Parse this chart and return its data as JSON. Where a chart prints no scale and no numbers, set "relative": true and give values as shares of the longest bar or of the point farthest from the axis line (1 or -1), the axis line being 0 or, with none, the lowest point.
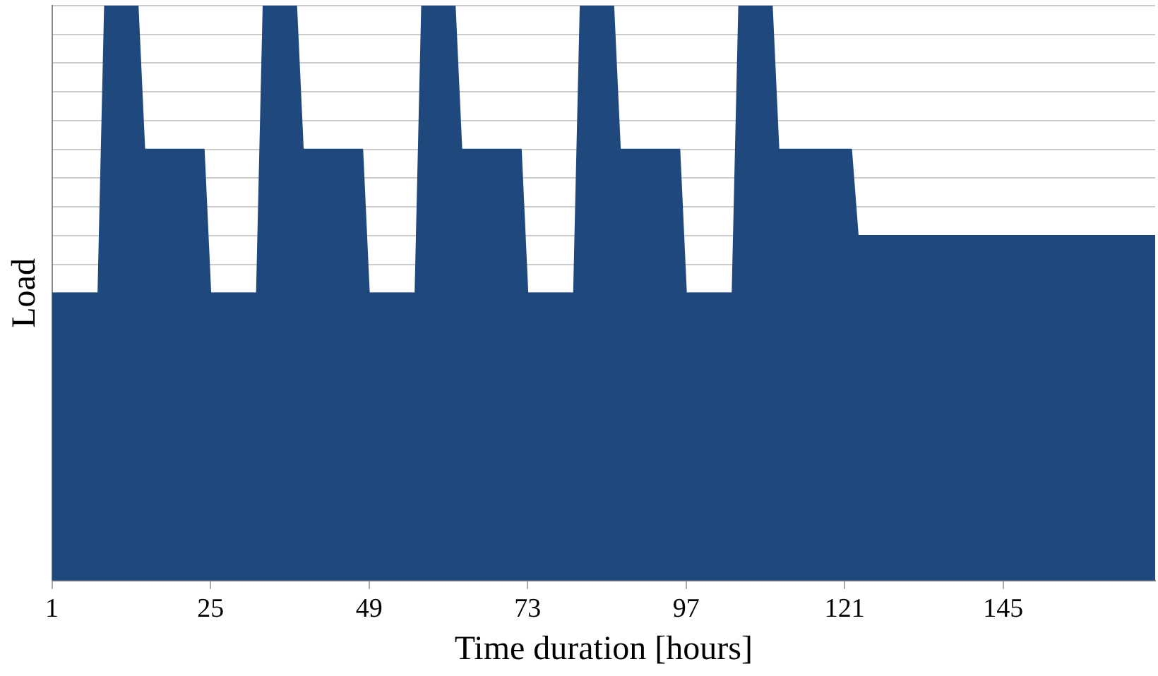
{
  "chart_data": {
    "type": "area",
    "xlabel": "Time duration [hours]",
    "ylabel": "Load",
    "relative": true,
    "grid": "y",
    "legend": false,
    "x": [
      1,
      2,
      3,
      4,
      5,
      6,
      7,
      8,
      9,
      10,
      11,
      12,
      13,
      14,
      15,
      16,
      17,
      18,
      19,
      20,
      21,
      22,
      23,
      24,
      25,
      26,
      27,
      28,
      29,
      30,
      31,
      32,
      33,
      34,
      35,
      36,
      37,
      38,
      39,
      40,
      41,
      42,
      43,
      44,
      45,
      46,
      47,
      48,
      49,
      50,
      51,
      52,
      53,
      54,
      55,
      56,
      57,
      58,
      59,
      60,
      61,
      62,
      63,
      64,
      65,
      66,
      67,
      68,
      69,
      70,
      71,
      72,
      73,
      74,
      75,
      76,
      77,
      78,
      79,
      80,
      81,
      82,
      83,
      84,
      85,
      86,
      87,
      88,
      89,
      90,
      91,
      92,
      93,
      94,
      95,
      96,
      97,
      98,
      99,
      100,
      101,
      102,
      103,
      104,
      105,
      106,
      107,
      108,
      109,
      110,
      111,
      112,
      113,
      114,
      115,
      116,
      117,
      118,
      119,
      120,
      121,
      122,
      123,
      124,
      125,
      126,
      127,
      128,
      129,
      130,
      131,
      132,
      133,
      134,
      135,
      136,
      137,
      138,
      139,
      140,
      141,
      142,
      143,
      144,
      145,
      146,
      147,
      148,
      149,
      150,
      151,
      152,
      153,
      154,
      155,
      156,
      157,
      158,
      159,
      160,
      161,
      162,
      163,
      164,
      165,
      166,
      167,
      168
    ],
    "xlim": [
      1,
      168
    ],
    "xticks": [
      1,
      25,
      49,
      73,
      97,
      121,
      145
    ],
    "series": [
      {
        "color": "#1f497d",
        "values": [
          0.5,
          0.5,
          0.5,
          0.5,
          0.5,
          0.5,
          0.5,
          0.5,
          1,
          1,
          1,
          1,
          1,
          1,
          0.75,
          0.75,
          0.75,
          0.75,
          0.75,
          0.75,
          0.75,
          0.75,
          0.75,
          0.75,
          0.5,
          0.5,
          0.5,
          0.5,
          0.5,
          0.5,
          0.5,
          0.5,
          1,
          1,
          1,
          1,
          1,
          1,
          0.75,
          0.75,
          0.75,
          0.75,
          0.75,
          0.75,
          0.75,
          0.75,
          0.75,
          0.75,
          0.5,
          0.5,
          0.5,
          0.5,
          0.5,
          0.5,
          0.5,
          0.5,
          1,
          1,
          1,
          1,
          1,
          1,
          0.75,
          0.75,
          0.75,
          0.75,
          0.75,
          0.75,
          0.75,
          0.75,
          0.75,
          0.75,
          0.5,
          0.5,
          0.5,
          0.5,
          0.5,
          0.5,
          0.5,
          0.5,
          1,
          1,
          1,
          1,
          1,
          1,
          0.75,
          0.75,
          0.75,
          0.75,
          0.75,
          0.75,
          0.75,
          0.75,
          0.75,
          0.75,
          0.5,
          0.5,
          0.5,
          0.5,
          0.5,
          0.5,
          0.5,
          0.5,
          1,
          1,
          1,
          1,
          1,
          1,
          0.75,
          0.75,
          0.75,
          0.75,
          0.75,
          0.75,
          0.75,
          0.75,
          0.75,
          0.75,
          0.75,
          0.75,
          0.6,
          0.6,
          0.6,
          0.6,
          0.6,
          0.6,
          0.6,
          0.6,
          0.6,
          0.6,
          0.6,
          0.6,
          0.6,
          0.6,
          0.6,
          0.6,
          0.6,
          0.6,
          0.6,
          0.6,
          0.6,
          0.6,
          0.6,
          0.6,
          0.6,
          0.6,
          0.6,
          0.6,
          0.6,
          0.6,
          0.6,
          0.6,
          0.6,
          0.6,
          0.6,
          0.6,
          0.6,
          0.6,
          0.6,
          0.6,
          0.6,
          0.6,
          0.6,
          0.6,
          0.6,
          0.6
        ]
      }
    ]
  }
}
